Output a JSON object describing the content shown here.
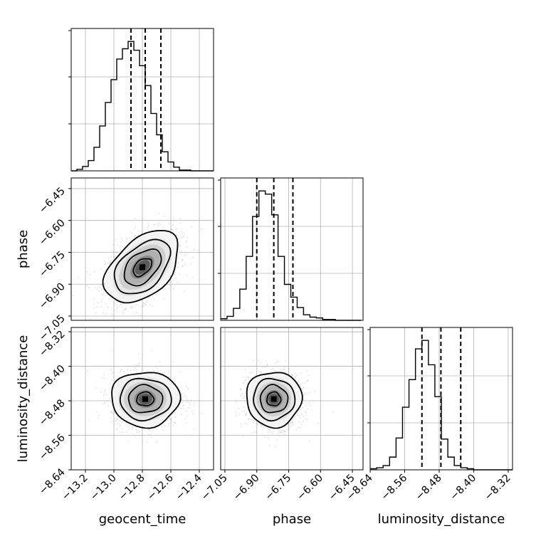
{
  "chart_data": {
    "type": "corner",
    "title": "",
    "parameters": [
      "geocent_time",
      "phase",
      "luminosity_distance"
    ],
    "axes": {
      "geocent_time": {
        "label": "geocent_time",
        "range": [
          -13.3,
          -12.3
        ],
        "ticks": [
          -13.2,
          -13.0,
          -12.8,
          -12.6,
          -12.4
        ],
        "tick_labels": [
          "−13.2",
          "−13.0",
          "−12.8",
          "−12.6",
          "−12.4"
        ]
      },
      "phase": {
        "label": "phase",
        "range": [
          -7.07,
          -6.4
        ],
        "ticks": [
          -7.05,
          -6.9,
          -6.75,
          -6.6,
          -6.45
        ],
        "tick_labels": [
          "−7.05",
          "−6.90",
          "−6.75",
          "−6.60",
          "−6.45"
        ]
      },
      "luminosity_distance": {
        "label": "luminosity_distance",
        "range": [
          -8.64,
          -8.31
        ],
        "ticks": [
          -8.64,
          -8.56,
          -8.48,
          -8.4,
          -8.32
        ],
        "tick_labels": [
          "−8.64",
          "−8.56",
          "−8.48",
          "−8.40",
          "−8.32"
        ]
      }
    },
    "histograms": {
      "geocent_time": {
        "bin_edges_start": -13.3,
        "bin_width": 0.04,
        "counts": [
          0,
          2,
          6,
          14,
          32,
          61,
          93,
          124,
          152,
          166,
          176,
          164,
          143,
          116,
          78,
          49,
          26,
          12,
          5,
          1,
          1,
          0,
          0,
          0,
          0
        ],
        "quantiles": [
          -12.88,
          -12.78,
          -12.67
        ]
      },
      "phase": {
        "bin_edges_start": -7.07,
        "bin_width": 0.03,
        "counts": [
          2,
          5,
          15,
          39,
          80,
          130,
          162,
          158,
          132,
          80,
          45,
          29,
          16,
          7,
          4,
          3,
          1,
          1,
          0,
          0,
          0,
          0
        ],
        "quantiles": [
          -6.9,
          -6.82,
          -6.73
        ]
      },
      "luminosity_distance": {
        "bin_edges_start": -8.64,
        "bin_width": 0.015,
        "counts": [
          1,
          2,
          4,
          12,
          30,
          59,
          85,
          114,
          122,
          99,
          69,
          29,
          12,
          4,
          2,
          1,
          0,
          0,
          0,
          0,
          0,
          0
        ],
        "quantiles": [
          -8.52,
          -8.476,
          -8.43
        ]
      }
    },
    "joint_distributions": [
      {
        "x": "geocent_time",
        "y": "phase",
        "mean": [
          -12.8,
          -6.82
        ],
        "sd": [
          0.13,
          0.085
        ],
        "correlation": 0.45
      },
      {
        "x": "geocent_time",
        "y": "luminosity_distance",
        "mean": [
          -12.78,
          -8.476
        ],
        "sd": [
          0.12,
          0.032
        ],
        "correlation": 0.0
      },
      {
        "x": "phase",
        "y": "luminosity_distance",
        "mean": [
          -6.82,
          -8.476
        ],
        "sd": [
          0.065,
          0.032
        ],
        "correlation": 0.0
      }
    ],
    "contour_levels_sigma": [
      0.5,
      1.0,
      1.5,
      2.0
    ],
    "grid": true
  }
}
